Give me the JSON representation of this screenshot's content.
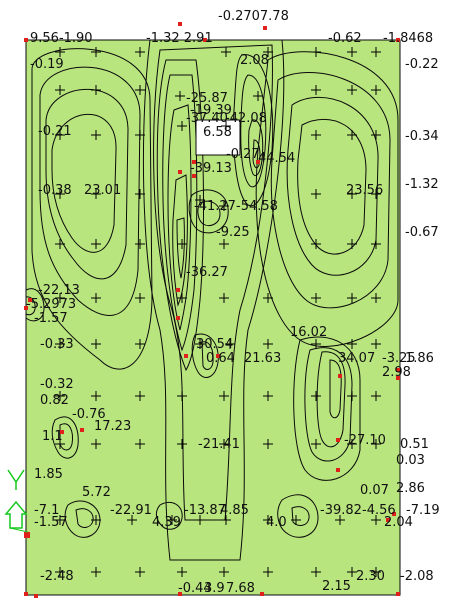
{
  "colors": {
    "background": "#ffffff",
    "level_1": "#b9e57e",
    "level_2": "#7fd35d",
    "level_3": "#4fc04a",
    "level_4": "#2fbf86",
    "level_5": "#27c9c9",
    "level_6": "#1a95d8",
    "level_7": "#1446c4",
    "level_8": "#0a1e9a",
    "warm_1": "#f2f28a",
    "warm_2": "#f7d45a",
    "warm_3": "#f4a532",
    "warm_4": "#ee8a1a",
    "contour_line": "#0a0a0a",
    "node": "#e0201a",
    "axis_icon": "#17c91f"
  },
  "icons": {
    "axis": "xyz-axis-icon"
  },
  "labels": [
    "-0.2707.78",
    "9.56-1.90",
    "-1.32 2.91",
    "-0.62",
    "-1.8468",
    "-0.19",
    "-0.22",
    "2.08",
    "-25.87",
    "-19.39",
    "-37.40",
    "-42.08",
    "-0.21",
    "6.58",
    "-0.34",
    "-0.27",
    "44.54",
    "-39.13",
    "-0.38",
    "23.01",
    "23.56",
    "-1.32",
    "-41.27",
    "-54.58",
    "-9.25",
    "-0.67",
    "-36.27",
    "-22.13",
    "-5.2973",
    "-1.57",
    "16.02",
    "-0.33",
    "30.54",
    "0.64",
    "21.63",
    "34.07",
    "-3.25",
    "2.98",
    "1.86",
    "-0.32",
    "0.82",
    "-0.76",
    "17.23",
    "-21.41",
    "-27.10",
    "0.51",
    "1.1",
    "0.03",
    "1.85",
    "5.72",
    "2.86",
    "0.07",
    "-7.1",
    "-22.91",
    "-13.87",
    "4.85",
    "-39.82",
    "-4.56",
    "-7.19",
    "-1.57",
    "4.39",
    "4.0",
    "2.04",
    "-2.48",
    "-0.44",
    "3.9",
    "7.68",
    "2.30",
    "-2.08",
    "2.15"
  ]
}
